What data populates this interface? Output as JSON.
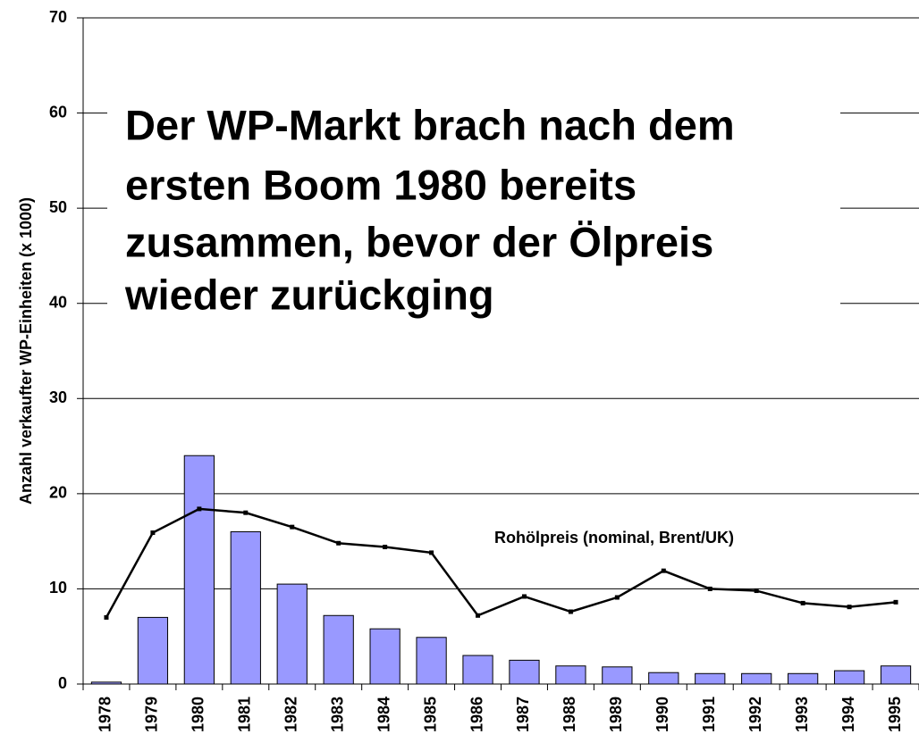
{
  "chart_data": {
    "type": "bar_line",
    "title": [
      "Der WP-Markt brach nach dem",
      "ersten Boom 1980 bereits",
      "zusammen, bevor der Ölpreis",
      "wieder zurückging"
    ],
    "y_label": "Anzahl verkaufter WP-Einheiten (x 1000)",
    "annotation": "Rohölpreis (nominal, Brent/UK)",
    "categories": [
      "1978",
      "1979",
      "1980",
      "1981",
      "1982",
      "1983",
      "1984",
      "1985",
      "1986",
      "1987",
      "1988",
      "1989",
      "1990",
      "1991",
      "1992",
      "1993",
      "1994",
      "1995"
    ],
    "series": [
      {
        "type": "bar",
        "color": "#9999ff",
        "values": [
          0.2,
          7,
          24,
          16,
          10.5,
          7.2,
          5.8,
          4.9,
          3,
          2.5,
          1.9,
          1.8,
          1.2,
          1.1,
          1.1,
          1.1,
          1.4,
          1.9
        ]
      },
      {
        "type": "line",
        "color": "#000000",
        "values": [
          7.0,
          15.9,
          18.4,
          18.0,
          16.5,
          14.8,
          14.4,
          13.8,
          7.2,
          9.2,
          7.6,
          9.1,
          11.9,
          10.0,
          9.8,
          8.5,
          8.1,
          8.6
        ]
      }
    ],
    "ylim": [
      0,
      70
    ],
    "yticks": [
      0,
      10,
      20,
      30,
      40,
      50,
      60,
      70
    ],
    "grid": true
  }
}
